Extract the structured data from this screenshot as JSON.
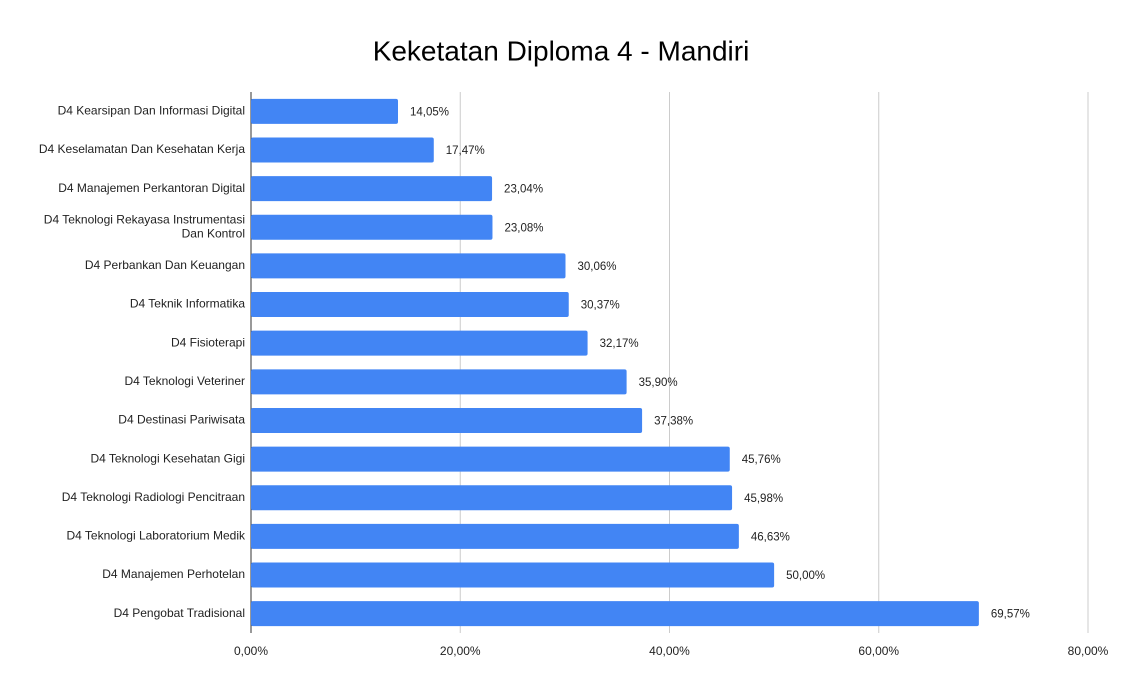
{
  "chart_data": {
    "type": "bar",
    "orientation": "horizontal",
    "title": "Keketatan Diploma 4 - Mandiri",
    "categories": [
      "D4 Kearsipan Dan Informasi Digital",
      "D4 Keselamatan Dan Kesehatan Kerja",
      "D4 Manajemen Perkantoran Digital",
      "D4 Teknologi Rekayasa Instrumentasi Dan Kontrol",
      "D4 Perbankan Dan Keuangan",
      "D4 Teknik Informatika",
      "D4 Fisioterapi",
      "D4 Teknologi Veteriner",
      "D4 Destinasi Pariwisata",
      "D4 Teknologi Kesehatan Gigi",
      "D4 Teknologi Radiologi Pencitraan",
      "D4 Teknologi Laboratorium Medik",
      "D4 Manajemen Perhotelan",
      "D4 Pengobat Tradisional"
    ],
    "values": [
      14.05,
      17.47,
      23.04,
      23.08,
      30.06,
      30.37,
      32.17,
      35.9,
      37.38,
      45.76,
      45.98,
      46.63,
      50.0,
      69.57
    ],
    "value_labels": [
      "14,05%",
      "17,47%",
      "23,04%",
      "23,08%",
      "30,06%",
      "30,37%",
      "32,17%",
      "35,90%",
      "37,38%",
      "45,76%",
      "45,98%",
      "46,63%",
      "50,00%",
      "69,57%"
    ],
    "color": "#4285f4",
    "xlim": [
      0,
      80
    ],
    "xticks": [
      {
        "value": 0,
        "label": "0,00%"
      },
      {
        "value": 20,
        "label": "20,00%"
      },
      {
        "value": 40,
        "label": "40,00%"
      },
      {
        "value": 60,
        "label": "60,00%"
      },
      {
        "value": 80,
        "label": "80,00%"
      }
    ],
    "grid": true
  }
}
